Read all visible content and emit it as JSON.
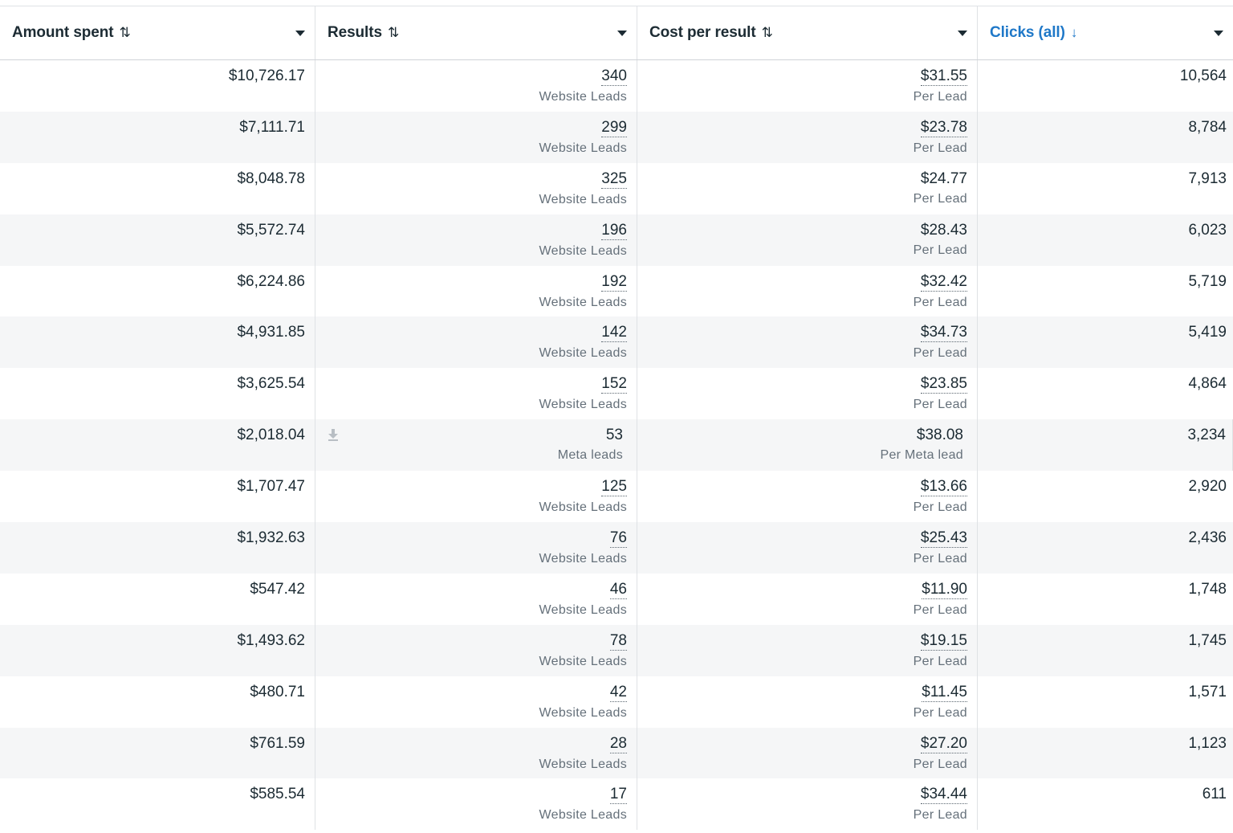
{
  "headers": [
    {
      "label": "Amount spent",
      "sort_icon": "sort-both-icon",
      "active": false
    },
    {
      "label": "Results",
      "sort_icon": "sort-both-icon",
      "active": false
    },
    {
      "label": "Cost per result",
      "sort_icon": "sort-both-icon",
      "active": false
    },
    {
      "label": "Clicks (all)",
      "sort_icon": "sort-descending-icon",
      "active": true
    }
  ],
  "colors": {
    "active_header": "#1f78c8",
    "row_alt": "#f5f6f7",
    "text": "#1c2b33",
    "subtext": "#65707a"
  },
  "rows": [
    {
      "amount": "$10,726.17",
      "results": "340",
      "results_label": "Website Leads",
      "cpr": "$31.55",
      "cpr_label": "Per Lead",
      "clicks": "10,564"
    },
    {
      "amount": "$7,111.71",
      "results": "299",
      "results_label": "Website Leads",
      "cpr": "$23.78",
      "cpr_label": "Per Lead",
      "clicks": "8,784"
    },
    {
      "amount": "$8,048.78",
      "results": "325",
      "results_label": "Website Leads",
      "cpr": "$24.77",
      "cpr_label": "Per Lead",
      "clicks": "7,913"
    },
    {
      "amount": "$5,572.74",
      "results": "196",
      "results_label": "Website Leads",
      "cpr": "$28.43",
      "cpr_label": "Per Lead",
      "clicks": "6,023"
    },
    {
      "amount": "$6,224.86",
      "results": "192",
      "results_label": "Website Leads",
      "cpr": "$32.42",
      "cpr_label": "Per Lead",
      "clicks": "5,719"
    },
    {
      "amount": "$4,931.85",
      "results": "142",
      "results_label": "Website Leads",
      "cpr": "$34.73",
      "cpr_label": "Per Lead",
      "clicks": "5,419"
    },
    {
      "amount": "$3,625.54",
      "results": "152",
      "results_label": "Website Leads",
      "cpr": "$23.85",
      "cpr_label": "Per Lead",
      "clicks": "4,864"
    },
    {
      "amount": "$2,018.04",
      "results": "53",
      "results_label": "Meta leads",
      "cpr": "$38.08",
      "cpr_label": "Per Meta lead",
      "clicks": "3,234",
      "download_icon": true
    },
    {
      "amount": "$1,707.47",
      "results": "125",
      "results_label": "Website Leads",
      "cpr": "$13.66",
      "cpr_label": "Per Lead",
      "clicks": "2,920"
    },
    {
      "amount": "$1,932.63",
      "results": "76",
      "results_label": "Website Leads",
      "cpr": "$25.43",
      "cpr_label": "Per Lead",
      "clicks": "2,436"
    },
    {
      "amount": "$547.42",
      "results": "46",
      "results_label": "Website Leads",
      "cpr": "$11.90",
      "cpr_label": "Per Lead",
      "clicks": "1,748"
    },
    {
      "amount": "$1,493.62",
      "results": "78",
      "results_label": "Website Leads",
      "cpr": "$19.15",
      "cpr_label": "Per Lead",
      "clicks": "1,745"
    },
    {
      "amount": "$480.71",
      "results": "42",
      "results_label": "Website Leads",
      "cpr": "$11.45",
      "cpr_label": "Per Lead",
      "clicks": "1,571"
    },
    {
      "amount": "$761.59",
      "results": "28",
      "results_label": "Website Leads",
      "cpr": "$27.20",
      "cpr_label": "Per Lead",
      "clicks": "1,123"
    },
    {
      "amount": "$585.54",
      "results": "17",
      "results_label": "Website Leads",
      "cpr": "$34.44",
      "cpr_label": "Per Lead",
      "clicks": "611"
    }
  ]
}
